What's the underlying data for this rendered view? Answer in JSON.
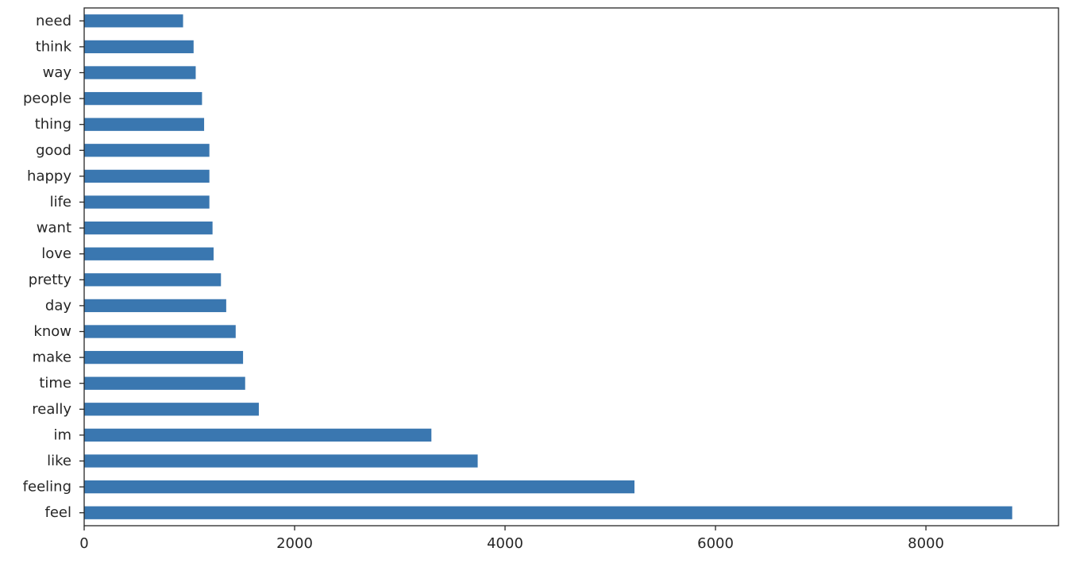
{
  "chart_data": {
    "type": "bar",
    "orientation": "horizontal",
    "categories": [
      "feel",
      "feeling",
      "like",
      "im",
      "really",
      "time",
      "make",
      "know",
      "day",
      "pretty",
      "love",
      "want",
      "life",
      "happy",
      "good",
      "thing",
      "people",
      "way",
      "think",
      "need"
    ],
    "values": [
      8820,
      5230,
      3740,
      3300,
      1660,
      1530,
      1510,
      1440,
      1350,
      1300,
      1230,
      1220,
      1190,
      1190,
      1190,
      1140,
      1120,
      1060,
      1040,
      940
    ],
    "xlim": [
      0,
      9260
    ],
    "xticks": [
      0,
      2000,
      4000,
      6000,
      8000
    ],
    "xtick_labels": [
      "0",
      "2000",
      "4000",
      "6000",
      "8000"
    ],
    "title": "",
    "xlabel": "",
    "ylabel": "",
    "grid": false,
    "bar_color": "#3a77b0"
  }
}
